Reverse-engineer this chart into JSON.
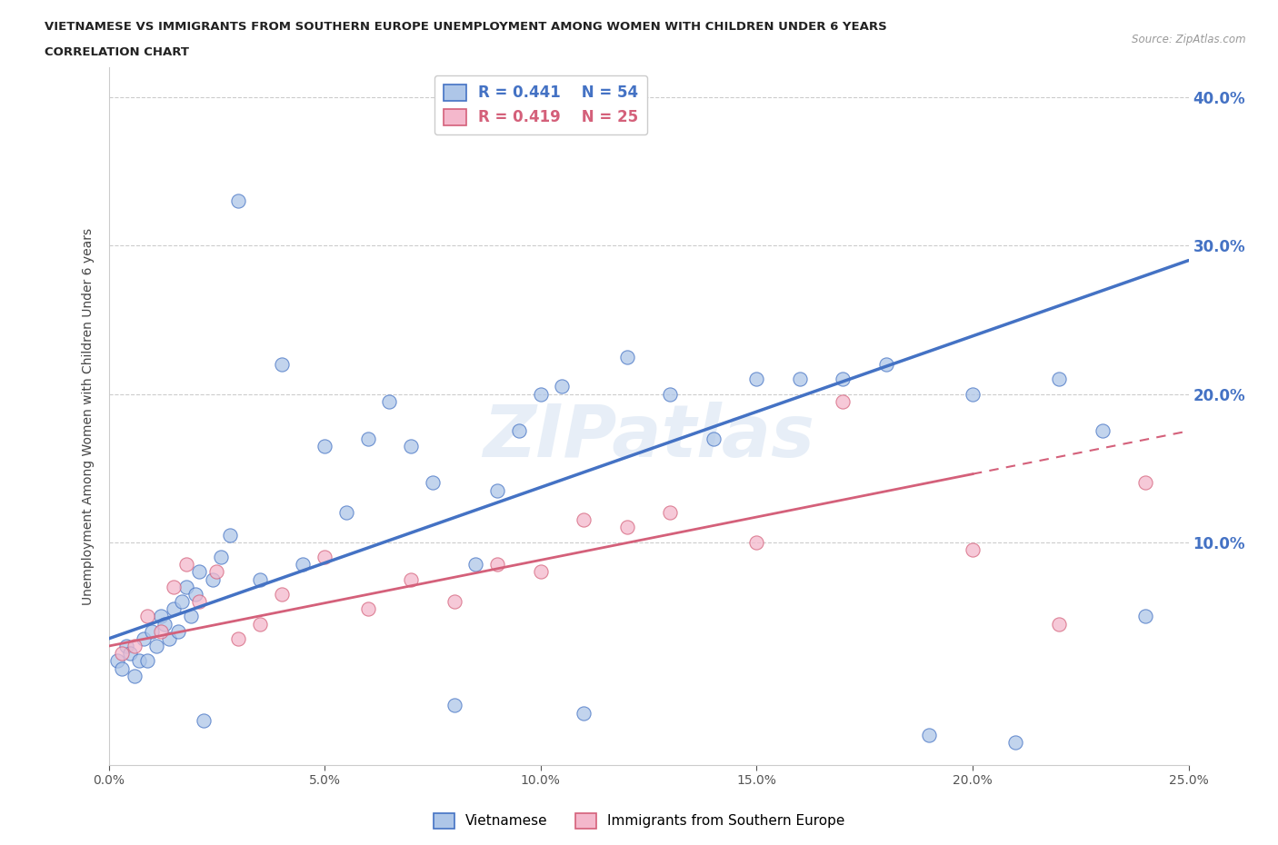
{
  "title_line1": "VIETNAMESE VS IMMIGRANTS FROM SOUTHERN EUROPE UNEMPLOYMENT AMONG WOMEN WITH CHILDREN UNDER 6 YEARS",
  "title_line2": "CORRELATION CHART",
  "source": "Source: ZipAtlas.com",
  "ylabel": "Unemployment Among Women with Children Under 6 years",
  "x_tick_vals": [
    0.0,
    5.0,
    10.0,
    15.0,
    20.0,
    25.0
  ],
  "y_tick_vals": [
    10.0,
    20.0,
    30.0,
    40.0
  ],
  "xlim": [
    0.0,
    25.0
  ],
  "ylim": [
    -5.0,
    42.0
  ],
  "vietnamese_color": "#aec6e8",
  "southern_europe_color": "#f4b8cc",
  "trendline_blue": "#4472c4",
  "trendline_pink": "#d4607a",
  "R_vietnamese": 0.441,
  "N_vietnamese": 54,
  "R_southern": 0.419,
  "N_southern": 25,
  "legend_label_vietnamese": "Vietnamese",
  "legend_label_southern": "Immigrants from Southern Europe",
  "watermark_text": "ZIPatlas",
  "background_color": "#ffffff",
  "grid_color": "#cccccc",
  "vietnamese_x": [
    0.2,
    0.3,
    0.4,
    0.5,
    0.6,
    0.7,
    0.8,
    0.9,
    1.0,
    1.1,
    1.2,
    1.3,
    1.4,
    1.5,
    1.6,
    1.7,
    1.8,
    1.9,
    2.0,
    2.1,
    2.2,
    2.4,
    2.6,
    2.8,
    3.0,
    3.5,
    4.0,
    4.5,
    5.0,
    5.5,
    6.0,
    6.5,
    7.0,
    7.5,
    8.0,
    8.5,
    9.0,
    9.5,
    10.0,
    10.5,
    11.0,
    12.0,
    13.0,
    14.0,
    15.0,
    16.0,
    17.0,
    18.0,
    19.0,
    20.0,
    21.0,
    22.0,
    23.0,
    24.0
  ],
  "vietnamese_y": [
    2.0,
    1.5,
    3.0,
    2.5,
    1.0,
    2.0,
    3.5,
    2.0,
    4.0,
    3.0,
    5.0,
    4.5,
    3.5,
    5.5,
    4.0,
    6.0,
    7.0,
    5.0,
    6.5,
    8.0,
    -2.0,
    7.5,
    9.0,
    10.5,
    33.0,
    7.5,
    22.0,
    8.5,
    16.5,
    12.0,
    17.0,
    19.5,
    16.5,
    14.0,
    -1.0,
    8.5,
    13.5,
    17.5,
    20.0,
    20.5,
    -1.5,
    22.5,
    20.0,
    17.0,
    21.0,
    21.0,
    21.0,
    22.0,
    -3.0,
    20.0,
    -3.5,
    21.0,
    17.5,
    5.0
  ],
  "southern_x": [
    0.3,
    0.6,
    0.9,
    1.2,
    1.5,
    1.8,
    2.1,
    2.5,
    3.0,
    3.5,
    4.0,
    5.0,
    6.0,
    7.0,
    8.0,
    9.0,
    10.0,
    11.0,
    12.0,
    13.0,
    15.0,
    17.0,
    20.0,
    22.0,
    24.0
  ],
  "southern_y": [
    2.5,
    3.0,
    5.0,
    4.0,
    7.0,
    8.5,
    6.0,
    8.0,
    3.5,
    4.5,
    6.5,
    9.0,
    5.5,
    7.5,
    6.0,
    8.5,
    8.0,
    11.5,
    11.0,
    12.0,
    10.0,
    19.5,
    9.5,
    4.5,
    14.0
  ],
  "trend_blue_x0": 0.0,
  "trend_blue_y0": 3.5,
  "trend_blue_x1": 25.0,
  "trend_blue_y1": 29.0,
  "trend_pink_x0": 0.0,
  "trend_pink_y0": 3.0,
  "trend_pink_x1": 25.0,
  "trend_pink_y1": 17.5
}
